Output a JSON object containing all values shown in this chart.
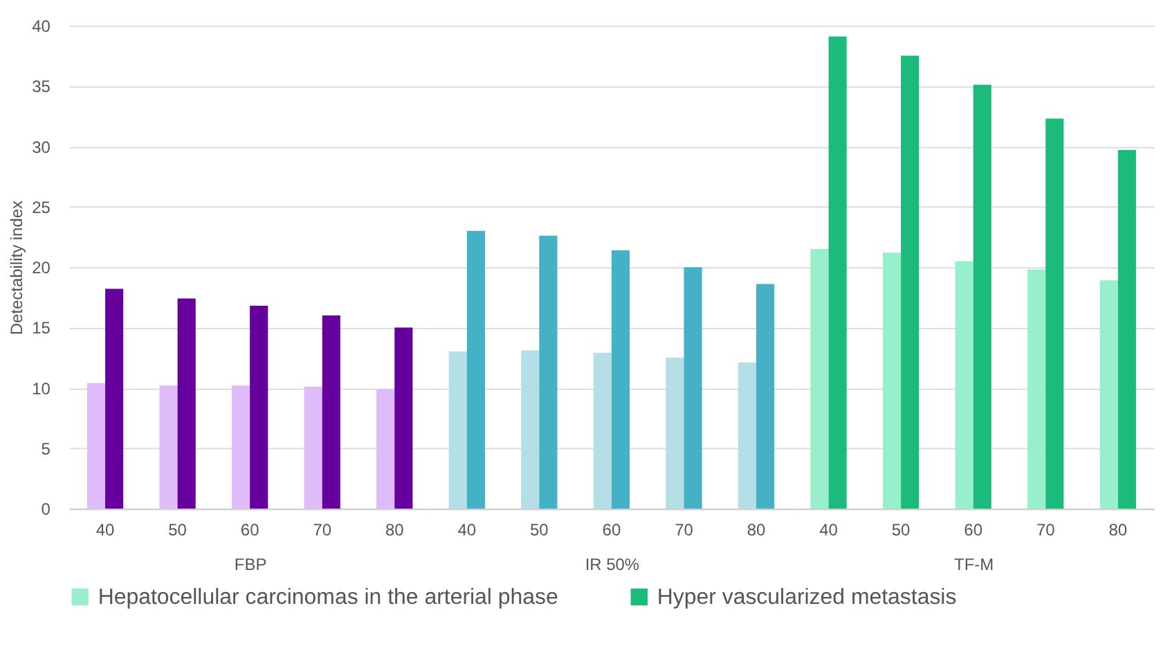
{
  "chart_data": [
    {
      "type": "bar",
      "xlabel": "FBP",
      "ylabel": "Detectability index",
      "categories": [
        "40",
        "50",
        "60",
        "70",
        "80"
      ],
      "ylim": [
        0,
        40
      ],
      "yticks": [
        0,
        5,
        10,
        15,
        20,
        25,
        30,
        35,
        40
      ],
      "grid": "y",
      "series": [
        {
          "color": "#e0bbf9",
          "values": [
            10.4,
            10.2,
            10.2,
            10.1,
            9.9
          ]
        },
        {
          "color": "#65009e",
          "values": [
            18.2,
            17.4,
            16.8,
            16.0,
            15.0
          ]
        }
      ]
    },
    {
      "type": "bar",
      "xlabel": "IR 50%",
      "categories": [
        "40",
        "50",
        "60",
        "70",
        "80"
      ],
      "ylim": [
        0,
        40
      ],
      "yticks": [
        0,
        5,
        10,
        15,
        20,
        25,
        30,
        35,
        40
      ],
      "grid": "y",
      "tick_labels": "x",
      "series": [
        {
          "color": "#b5dfe6",
          "values": [
            13.0,
            13.1,
            12.9,
            12.5,
            12.1
          ]
        },
        {
          "color": "#45b1c6",
          "values": [
            23.0,
            22.6,
            21.4,
            20.0,
            18.6
          ]
        }
      ]
    },
    {
      "type": "bar",
      "xlabel": "TF-M",
      "categories": [
        "40",
        "50",
        "60",
        "70",
        "80"
      ],
      "ylim": [
        0,
        40
      ],
      "yticks": [
        0,
        5,
        10,
        15,
        20,
        25,
        30,
        35,
        40
      ],
      "grid": "y",
      "tick_labels": "x",
      "legend": "bottom",
      "series": [
        {
          "name": "Hepatocellular carcinomas in the arterial phase",
          "color": "#98efcc",
          "values": [
            21.5,
            21.2,
            20.5,
            19.8,
            18.9
          ]
        },
        {
          "name": "Hyper vascularized metastasis",
          "color": "#1cbb7b",
          "values": [
            39.1,
            37.5,
            35.1,
            32.3,
            29.7
          ]
        }
      ]
    }
  ]
}
